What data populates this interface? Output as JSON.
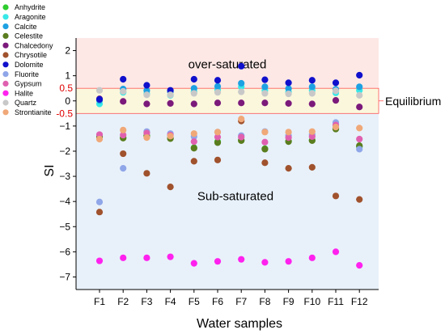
{
  "chart_data": {
    "type": "scatter",
    "xlabel": "Water samples",
    "ylabel": "SI",
    "ylim": [
      -7.5,
      2.5
    ],
    "yticks": [
      2,
      1,
      0,
      -1,
      -2,
      -3,
      -4,
      -5,
      -6,
      -7
    ],
    "categories": [
      "F1",
      "F2",
      "F3",
      "F4",
      "F5",
      "F6",
      "F7",
      "F8",
      "F9",
      "F10",
      "F11",
      "F12"
    ],
    "thresholds": {
      "upper": 0.5,
      "lower": -0.5,
      "upper_label": "0.5",
      "lower_label": "-0.5"
    },
    "regions": {
      "over": {
        "label": "over-saturated",
        "color": "#fde8e6"
      },
      "equilibrium": {
        "label": "Equilibrium",
        "color": "#fbf7dd"
      },
      "sub": {
        "label": "Sub-saturated",
        "color": "#e8f1fa"
      }
    },
    "legend_position": "top-left",
    "series": [
      {
        "name": "Anhydrite",
        "color": "#2ecc2e",
        "values": [
          -1.42,
          -1.46,
          -1.38,
          -1.48,
          -1.86,
          -1.62,
          -1.56,
          -1.9,
          -1.6,
          -1.56,
          -1.1,
          -1.82
        ]
      },
      {
        "name": "Aragonite",
        "color": "#38e8e8",
        "values": [
          -0.12,
          0.34,
          0.28,
          0.22,
          0.36,
          0.44,
          0.56,
          0.42,
          0.35,
          0.42,
          0.32,
          0.42
        ]
      },
      {
        "name": "Calcite",
        "color": "#1da1e2",
        "values": [
          0.02,
          0.47,
          0.41,
          0.36,
          0.5,
          0.58,
          0.7,
          0.56,
          0.49,
          0.56,
          0.46,
          0.56
        ]
      },
      {
        "name": "Celestite",
        "color": "#5a7d1e",
        "values": [
          -1.44,
          -1.48,
          -1.4,
          -1.5,
          -1.88,
          -1.66,
          -1.58,
          -1.92,
          -1.62,
          -1.58,
          -1.12,
          -1.78
        ]
      },
      {
        "name": "Chalcedony",
        "color": "#7b1a7b",
        "values": [
          0.08,
          -0.02,
          -0.12,
          -0.1,
          -0.12,
          -0.08,
          -0.08,
          -0.08,
          -0.1,
          -0.12,
          0.02,
          -0.24
        ]
      },
      {
        "name": "Chrysotile",
        "color": "#a0522d",
        "values": [
          -4.42,
          -2.1,
          -2.88,
          -3.42,
          -2.4,
          -2.35,
          -0.8,
          -2.46,
          -2.68,
          -2.64,
          -3.78,
          -3.92
        ]
      },
      {
        "name": "Dolomite",
        "color": "#1010cc",
        "values": [
          0.06,
          0.86,
          0.62,
          0.42,
          0.86,
          0.82,
          1.38,
          0.84,
          0.72,
          0.82,
          0.72,
          1.02
        ]
      },
      {
        "name": "Fluorite",
        "color": "#8fa6e8",
        "values": [
          -4.02,
          -2.68,
          -1.22,
          -1.3,
          -1.42,
          -1.24,
          -1.38,
          -1.22,
          -1.38,
          -1.34,
          -0.86,
          -1.92
        ]
      },
      {
        "name": "Gypsum",
        "color": "#e060b0",
        "values": [
          -1.34,
          -1.36,
          -1.28,
          -1.36,
          -1.62,
          -1.44,
          -1.44,
          -1.64,
          -1.46,
          -1.42,
          -0.96,
          -1.52
        ]
      },
      {
        "name": "Halite",
        "color": "#ff22ee",
        "values": [
          -6.36,
          -6.24,
          -6.24,
          -6.2,
          -6.46,
          -6.38,
          -6.3,
          -6.42,
          -6.38,
          -6.24,
          -6.0,
          -6.54
        ]
      },
      {
        "name": "Quartz",
        "color": "#c8c8c8",
        "values": [
          0.42,
          0.38,
          0.24,
          0.24,
          0.3,
          0.34,
          0.36,
          0.3,
          0.28,
          0.3,
          0.4,
          0.22
        ]
      },
      {
        "name": "Strontianite",
        "color": "#f0a878",
        "values": [
          -1.52,
          -1.16,
          -1.46,
          -1.4,
          -1.3,
          -1.24,
          -0.72,
          -1.24,
          -1.24,
          -1.22,
          -1.04,
          -1.08
        ]
      }
    ]
  }
}
